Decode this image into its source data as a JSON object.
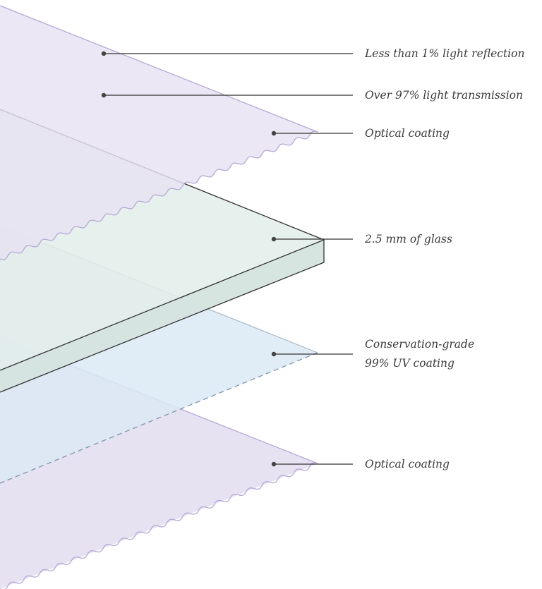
{
  "diagram": {
    "layers": [
      {
        "id": "top-coating",
        "label": "Optical coating",
        "fill": "#e6e2f1",
        "stroke": "#b6a8d6"
      },
      {
        "id": "glass",
        "label": "2.5 mm of glass",
        "fill": "#e4eeee",
        "side_fill": "#d7e5e2",
        "stroke": "#333333"
      },
      {
        "id": "uv-coating",
        "label": "Conservation-grade 99% UV coating",
        "fill": "#e1eef7",
        "stroke": "#7c93ad"
      },
      {
        "id": "bottom-coating",
        "label": "Optical coating",
        "fill": "#e6e2f1",
        "stroke": "#b6a8d6"
      }
    ],
    "callouts": {
      "reflection": "Less than 1% light reflection",
      "transmission": "Over 97% light transmission",
      "top_coating": "Optical coating",
      "glass": "2.5 mm of glass",
      "uv_line1": "Conservation-grade",
      "uv_line2": "99% UV coating",
      "bottom_coating": "Optical coating"
    },
    "colors": {
      "leader_line": "#333333",
      "dot": "#444444",
      "label_text": "#3a3a3a"
    }
  }
}
